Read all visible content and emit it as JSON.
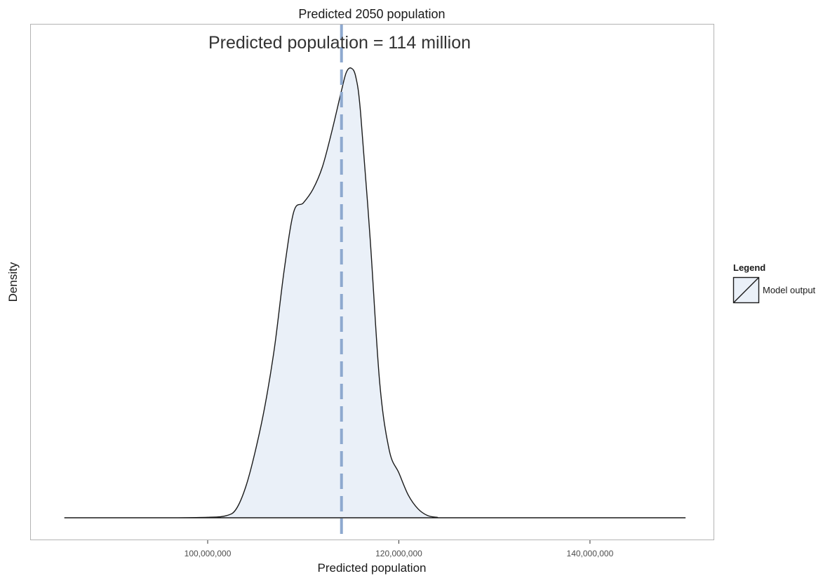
{
  "chart_data": {
    "type": "area",
    "title": "Predicted 2050 population",
    "annotation": "Predicted population = 114 million",
    "xlabel": "Predicted population",
    "ylabel": "Density",
    "xlim": [
      81500000,
      153000000
    ],
    "ylim": [
      0,
      1
    ],
    "x_ticks": [
      100000000,
      120000000,
      140000000
    ],
    "x_tick_labels": [
      "100,000,000",
      "120,000,000",
      "140,000,000"
    ],
    "y_ticks_shown": false,
    "grid": false,
    "reference_line": {
      "x": 114000000,
      "style": "dashed",
      "color": "#8ea9cf"
    },
    "series": [
      {
        "name": "Model output",
        "fill": "#eaf0f8",
        "stroke": "#1a1a1a",
        "x": [
          85000000,
          95000000,
          100000000,
          102000000,
          103000000,
          104000000,
          105000000,
          106000000,
          107000000,
          108000000,
          109000000,
          110000000,
          111000000,
          112000000,
          113000000,
          114000000,
          114500000,
          115000000,
          115500000,
          116000000,
          117000000,
          118000000,
          119000000,
          120000000,
          121000000,
          122000000,
          123000000,
          124000000,
          125000000,
          135000000,
          150000000
        ],
        "y": [
          0,
          0,
          0.001,
          0.005,
          0.02,
          0.07,
          0.15,
          0.25,
          0.38,
          0.55,
          0.68,
          0.7,
          0.73,
          0.78,
          0.86,
          0.95,
          0.99,
          1.0,
          0.98,
          0.9,
          0.62,
          0.3,
          0.15,
          0.1,
          0.05,
          0.02,
          0.005,
          0.001,
          0,
          0,
          0
        ]
      }
    ],
    "legend": {
      "title": "Legend",
      "placement": "right",
      "entries": [
        "Model output"
      ]
    }
  }
}
